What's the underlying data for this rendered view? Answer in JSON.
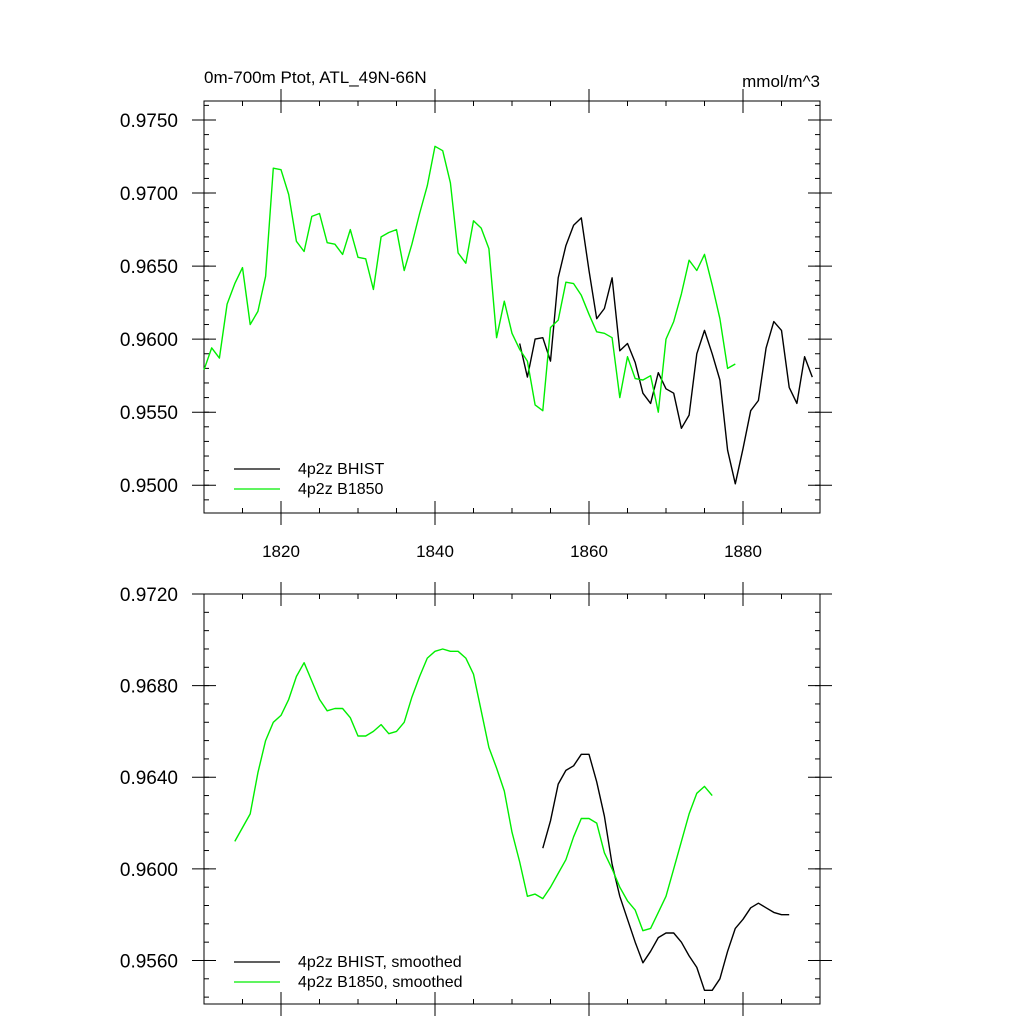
{
  "chart_data": [
    {
      "type": "line",
      "title": "0m-700m Ptot, ATL_49N-66N",
      "units": "mmol/m^3",
      "xlim": [
        1810,
        1890
      ],
      "ylim": [
        0.9481,
        0.9763
      ],
      "xticks": [
        1820,
        1840,
        1860,
        1880
      ],
      "xtick_labels": [
        "1820",
        "1840",
        "1860",
        "1880"
      ],
      "yticks": [
        0.95,
        0.955,
        0.96,
        0.965,
        0.97,
        0.975
      ],
      "ytick_labels": [
        "0.9500",
        "0.9550",
        "0.9600",
        "0.9650",
        "0.9700",
        "0.9750"
      ],
      "legend": "bottom-left",
      "series": [
        {
          "name": "4p2z BHIST",
          "color": "#000000",
          "x": [
            1851,
            1852,
            1853,
            1854,
            1855,
            1856,
            1857,
            1858,
            1859,
            1860,
            1861,
            1862,
            1863,
            1864,
            1865,
            1866,
            1867,
            1868,
            1869,
            1870,
            1871,
            1872,
            1873,
            1874,
            1875,
            1876,
            1877,
            1878,
            1879,
            1880,
            1881,
            1882,
            1883,
            1884,
            1885,
            1886,
            1887,
            1888,
            1889
          ],
          "y": [
            0.9597,
            0.9574,
            0.96,
            0.9601,
            0.9585,
            0.9642,
            0.9664,
            0.9678,
            0.9683,
            0.9647,
            0.9614,
            0.9621,
            0.9642,
            0.9592,
            0.9597,
            0.9584,
            0.9563,
            0.9556,
            0.9577,
            0.9566,
            0.9563,
            0.9539,
            0.9548,
            0.959,
            0.9606,
            0.959,
            0.9572,
            0.9524,
            0.9501,
            0.9525,
            0.9551,
            0.9558,
            0.9594,
            0.9612,
            0.9606,
            0.9567,
            0.9556,
            0.9588,
            0.9574
          ]
        },
        {
          "name": "4p2z B1850",
          "color": "#00ee00",
          "x": [
            1810,
            1811,
            1812,
            1813,
            1814,
            1815,
            1816,
            1817,
            1818,
            1819,
            1820,
            1821,
            1822,
            1823,
            1824,
            1825,
            1826,
            1827,
            1828,
            1829,
            1830,
            1831,
            1832,
            1833,
            1834,
            1835,
            1836,
            1837,
            1838,
            1839,
            1840,
            1841,
            1842,
            1843,
            1844,
            1845,
            1846,
            1847,
            1848,
            1849,
            1850,
            1851,
            1852,
            1853,
            1854,
            1855,
            1856,
            1857,
            1858,
            1859,
            1860,
            1861,
            1862,
            1863,
            1864,
            1865,
            1866,
            1867,
            1868,
            1869,
            1870,
            1871,
            1872,
            1873,
            1874,
            1875,
            1876,
            1877,
            1878,
            1879
          ],
          "y": [
            0.9579,
            0.9594,
            0.9587,
            0.9624,
            0.9638,
            0.9649,
            0.961,
            0.9619,
            0.9643,
            0.9717,
            0.9716,
            0.9699,
            0.9667,
            0.966,
            0.9684,
            0.9686,
            0.9666,
            0.9665,
            0.9658,
            0.9675,
            0.9656,
            0.9655,
            0.9634,
            0.967,
            0.9673,
            0.9675,
            0.9647,
            0.9665,
            0.9686,
            0.9705,
            0.9732,
            0.9729,
            0.9707,
            0.9659,
            0.9652,
            0.9681,
            0.9676,
            0.9662,
            0.9601,
            0.9626,
            0.9604,
            0.9593,
            0.9585,
            0.9555,
            0.9551,
            0.9608,
            0.9613,
            0.9639,
            0.9638,
            0.963,
            0.9617,
            0.9605,
            0.9604,
            0.9601,
            0.956,
            0.9588,
            0.9573,
            0.9572,
            0.9575,
            0.955,
            0.96,
            0.9612,
            0.9631,
            0.9654,
            0.9647,
            0.9658,
            0.9637,
            0.9614,
            0.958,
            0.9583
          ]
        }
      ]
    },
    {
      "type": "line",
      "xlim": [
        1810,
        1890
      ],
      "ylim": [
        0.9541,
        0.972
      ],
      "xticks": [
        1820,
        1840,
        1860,
        1880
      ],
      "yticks": [
        0.956,
        0.96,
        0.964,
        0.968,
        0.972
      ],
      "ytick_labels": [
        "0.9560",
        "0.9600",
        "0.9640",
        "0.9680",
        "0.9720"
      ],
      "legend": "bottom-left",
      "series": [
        {
          "name": "4p2z BHIST, smoothed",
          "color": "#000000",
          "x": [
            1854,
            1855,
            1856,
            1857,
            1858,
            1859,
            1860,
            1861,
            1862,
            1863,
            1864,
            1865,
            1866,
            1867,
            1868,
            1869,
            1870,
            1871,
            1872,
            1873,
            1874,
            1875,
            1876,
            1877,
            1878,
            1879,
            1880,
            1881,
            1882,
            1883,
            1884,
            1885,
            1886
          ],
          "y": [
            0.9609,
            0.9621,
            0.9637,
            0.9643,
            0.9645,
            0.965,
            0.965,
            0.9638,
            0.9623,
            0.9602,
            0.9588,
            0.9578,
            0.9568,
            0.9559,
            0.9564,
            0.957,
            0.9572,
            0.9572,
            0.9568,
            0.9562,
            0.9557,
            0.9547,
            0.9547,
            0.9552,
            0.9564,
            0.9574,
            0.9578,
            0.9583,
            0.9585,
            0.9583,
            0.9581,
            0.958,
            0.958
          ]
        },
        {
          "name": "4p2z B1850, smoothed",
          "color": "#00ee00",
          "x": [
            1814,
            1815,
            1816,
            1817,
            1818,
            1819,
            1820,
            1821,
            1822,
            1823,
            1824,
            1825,
            1826,
            1827,
            1828,
            1829,
            1830,
            1831,
            1832,
            1833,
            1834,
            1835,
            1836,
            1837,
            1838,
            1839,
            1840,
            1841,
            1842,
            1843,
            1844,
            1845,
            1846,
            1847,
            1848,
            1849,
            1850,
            1851,
            1852,
            1853,
            1854,
            1855,
            1856,
            1857,
            1858,
            1859,
            1860,
            1861,
            1862,
            1863,
            1864,
            1865,
            1866,
            1867,
            1868,
            1869,
            1870,
            1871,
            1872,
            1873,
            1874,
            1875,
            1876
          ],
          "y": [
            0.9612,
            0.9618,
            0.9624,
            0.9642,
            0.9656,
            0.9664,
            0.9667,
            0.9674,
            0.9684,
            0.969,
            0.9682,
            0.9674,
            0.9669,
            0.967,
            0.967,
            0.9666,
            0.9658,
            0.9658,
            0.966,
            0.9663,
            0.9659,
            0.966,
            0.9664,
            0.9675,
            0.9684,
            0.9692,
            0.9695,
            0.9696,
            0.9695,
            0.9695,
            0.9692,
            0.9685,
            0.9669,
            0.9653,
            0.9644,
            0.9634,
            0.9616,
            0.9603,
            0.9588,
            0.9589,
            0.9587,
            0.9592,
            0.9598,
            0.9604,
            0.9614,
            0.9622,
            0.9622,
            0.962,
            0.9607,
            0.96,
            0.9592,
            0.9586,
            0.9582,
            0.9573,
            0.9574,
            0.9581,
            0.9588,
            0.96,
            0.9612,
            0.9624,
            0.9633,
            0.9636,
            0.9632
          ]
        }
      ]
    }
  ]
}
